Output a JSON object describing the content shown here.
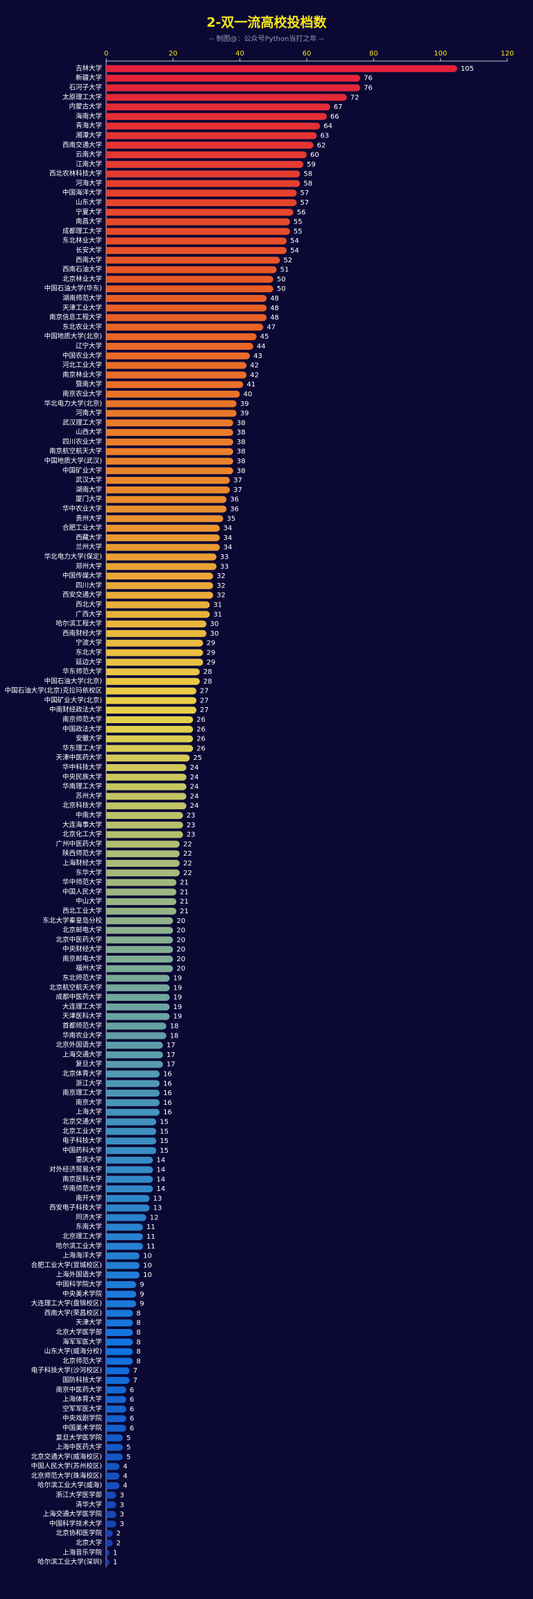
{
  "chart_data": {
    "type": "bar",
    "orientation": "horizontal",
    "title": "2-双一流高校投档数",
    "subtitle": "-- 制图@：公众号Python当打之年 --",
    "categories": [
      "吉林大学",
      "新疆大学",
      "石河子大学",
      "太原理工大学",
      "内蒙古大学",
      "海南大学",
      "青海大学",
      "湘潭大学",
      "西南交通大学",
      "云南大学",
      "江南大学",
      "西北农林科技大学",
      "河海大学",
      "中国海洋大学",
      "山东大学",
      "宁夏大学",
      "南昌大学",
      "成都理工大学",
      "东北林业大学",
      "长安大学",
      "西南大学",
      "西南石油大学",
      "北京林业大学",
      "中国石油大学(华东)",
      "湖南师范大学",
      "天津工业大学",
      "南京信息工程大学",
      "东北农业大学",
      "中国地质大学(北京)",
      "辽宁大学",
      "中国农业大学",
      "河北工业大学",
      "南京林业大学",
      "暨南大学",
      "南京农业大学",
      "华北电力大学(北京)",
      "河南大学",
      "武汉理工大学",
      "山西大学",
      "四川农业大学",
      "南京航空航天大学",
      "中国地质大学(武汉)",
      "中国矿业大学",
      "武汉大学",
      "湖南大学",
      "厦门大学",
      "华中农业大学",
      "贵州大学",
      "合肥工业大学",
      "西藏大学",
      "兰州大学",
      "华北电力大学(保定)",
      "郑州大学",
      "中国传媒大学",
      "四川大学",
      "西安交通大学",
      "西北大学",
      "广西大学",
      "哈尔滨工程大学",
      "西南财经大学",
      "宁波大学",
      "东北大学",
      "延边大学",
      "华东师范大学",
      "中国石油大学(北京)",
      "中国石油大学(北京)克拉玛依校区",
      "中国矿业大学(北京)",
      "中南财经政法大学",
      "南京师范大学",
      "中国政法大学",
      "安徽大学",
      "华东理工大学",
      "天津中医药大学",
      "华中科技大学",
      "中央民族大学",
      "华南理工大学",
      "苏州大学",
      "北京科技大学",
      "中南大学",
      "大连海事大学",
      "北京化工大学",
      "广州中医药大学",
      "陕西师范大学",
      "上海财经大学",
      "东华大学",
      "华中师范大学",
      "中国人民大学",
      "中山大学",
      "西北工业大学",
      "东北大学秦皇岛分校",
      "北京邮电大学",
      "北京中医药大学",
      "中央财经大学",
      "南京邮电大学",
      "福州大学",
      "东北师范大学",
      "北京航空航天大学",
      "成都中医药大学",
      "大连理工大学",
      "天津医科大学",
      "首都师范大学",
      "华南农业大学",
      "北京外国语大学",
      "上海交通大学",
      "复旦大学",
      "北京体育大学",
      "浙江大学",
      "南京理工大学",
      "南京大学",
      "上海大学",
      "北京交通大学",
      "北京工业大学",
      "电子科技大学",
      "中国药科大学",
      "重庆大学",
      "对外经济贸易大学",
      "南京医科大学",
      "华南师范大学",
      "南开大学",
      "西安电子科技大学",
      "同济大学",
      "东南大学",
      "北京理工大学",
      "哈尔滨工业大学",
      "上海海洋大学",
      "合肥工业大学(宣城校区)",
      "上海外国语大学",
      "中国科学院大学",
      "中央美术学院",
      "大连理工大学(盘锦校区)",
      "西南大学(荣昌校区)",
      "天津大学",
      "北京大学医学部",
      "海军军医大学",
      "山东大学(威海分校)",
      "北京师范大学",
      "电子科技大学(沙河校区)",
      "国防科技大学",
      "南京中医药大学",
      "上海体育大学",
      "空军军医大学",
      "中央戏剧学院",
      "中国美术学院",
      "复旦大学医学院",
      "上海中医药大学",
      "北京交通大学(威海校区)",
      "中国人民大学(苏州校区)",
      "北京师范大学(珠海校区)",
      "哈尔滨工业大学(威海)",
      "浙江大学医学部",
      "清华大学",
      "上海交通大学医学院",
      "中国科学技术大学",
      "北京协和医学院",
      "北京大学",
      "上海音乐学院",
      "哈尔滨工业大学(深圳)"
    ],
    "values": [
      105,
      76,
      76,
      72,
      67,
      66,
      64,
      63,
      62,
      60,
      59,
      58,
      58,
      57,
      57,
      56,
      55,
      55,
      54,
      54,
      52,
      51,
      50,
      50,
      48,
      48,
      48,
      47,
      45,
      44,
      43,
      42,
      42,
      41,
      40,
      39,
      39,
      38,
      38,
      38,
      38,
      38,
      38,
      37,
      37,
      36,
      36,
      35,
      34,
      34,
      34,
      33,
      33,
      32,
      32,
      32,
      31,
      31,
      30,
      30,
      29,
      29,
      29,
      28,
      28,
      27,
      27,
      27,
      26,
      26,
      26,
      26,
      25,
      24,
      24,
      24,
      24,
      24,
      23,
      23,
      23,
      22,
      22,
      22,
      22,
      21,
      21,
      21,
      21,
      20,
      20,
      20,
      20,
      20,
      20,
      19,
      19,
      19,
      19,
      19,
      18,
      18,
      17,
      17,
      17,
      16,
      16,
      16,
      16,
      16,
      15,
      15,
      15,
      15,
      14,
      14,
      14,
      14,
      13,
      13,
      12,
      11,
      11,
      11,
      10,
      10,
      10,
      9,
      9,
      9,
      8,
      8,
      8,
      8,
      8,
      8,
      7,
      7,
      6,
      6,
      6,
      6,
      6,
      5,
      5,
      5,
      4,
      4,
      4,
      3,
      3,
      3,
      3,
      2,
      2,
      1,
      1
    ],
    "colormap": [
      "#e3213b",
      "#e85a25",
      "#ea8a2c",
      "#e9d148",
      "#8fb28a",
      "#3b8fc0",
      "#1273e0",
      "#1a3aa8"
    ],
    "xlim": [
      0,
      120
    ],
    "xticks": [
      0,
      20,
      40,
      60,
      80,
      100,
      120
    ]
  }
}
